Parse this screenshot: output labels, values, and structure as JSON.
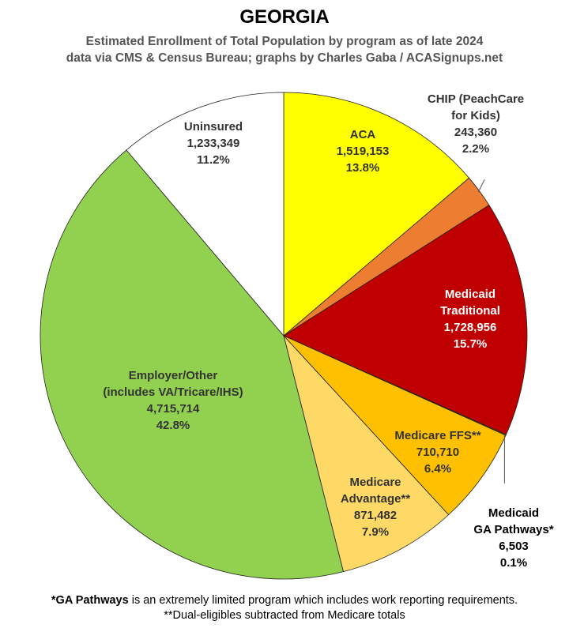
{
  "title": "GEORGIA",
  "subtitle_lines": [
    "Estimated Enrollment of Total Population by program as of late 2024",
    "data via CMS & Census Bureau; graphs by Charles Gaba / ACASignups.net"
  ],
  "chart_data": {
    "type": "pie",
    "title": "GEORGIA",
    "slices": [
      {
        "label_lines": [
          "ACA"
        ],
        "value": 1519153,
        "value_text": "1,519,153",
        "percent_text": "13.8%",
        "color": "#ffff00",
        "label_color": "#333333"
      },
      {
        "label_lines": [
          "CHIP (PeachCare",
          "for Kids)"
        ],
        "value": 243360,
        "value_text": "243,360",
        "percent_text": "2.2%",
        "color": "#ed7d31",
        "label_color": "#333333"
      },
      {
        "label_lines": [
          "Medicaid",
          "Traditional"
        ],
        "value": 1728956,
        "value_text": "1,728,956",
        "percent_text": "15.7%",
        "color": "#c00000",
        "label_color": "#ffffff"
      },
      {
        "label_lines": [
          "Medicaid",
          "GA Pathways*"
        ],
        "value": 6503,
        "value_text": "6,503",
        "percent_text": "0.1%",
        "color": "#c55a11",
        "label_color": "#000000"
      },
      {
        "label_lines": [
          "Medicare FFS**"
        ],
        "value": 710710,
        "value_text": "710,710",
        "percent_text": "6.4%",
        "color": "#ffc000",
        "label_color": "#333333"
      },
      {
        "label_lines": [
          "Medicare",
          "Advantage**"
        ],
        "value": 871482,
        "value_text": "871,482",
        "percent_text": "7.9%",
        "color": "#ffd966",
        "label_color": "#333333"
      },
      {
        "label_lines": [
          "Employer/Other",
          "(includes VA/Tricare/IHS)"
        ],
        "value": 4715714,
        "value_text": "4,715,714",
        "percent_text": "42.8%",
        "color": "#92d050",
        "label_color": "#333333"
      },
      {
        "label_lines": [
          "Uninsured"
        ],
        "value": 1233349,
        "value_text": "1,233,349",
        "percent_text": "11.2%",
        "color": "#ffffff",
        "label_color": "#333333"
      }
    ]
  },
  "footnotes": {
    "line1_bold": "*GA Pathways",
    "line1_rest": " is an extremely limited program which includes work reporting requirements.",
    "line2": "**Dual-eligibles subtracted from Medicare totals"
  }
}
